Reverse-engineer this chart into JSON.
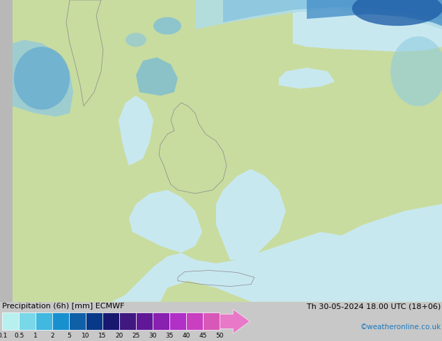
{
  "title_left": "Precipitation (6h) [mm] ECMWF",
  "title_right": "Th 30-05-2024 18.00 UTC (18+06)",
  "credit": "©weatheronline.co.uk",
  "colorbar_labels": [
    "0.1",
    "0.5",
    "1",
    "2",
    "5",
    "10",
    "15",
    "20",
    "25",
    "30",
    "35",
    "40",
    "45",
    "50"
  ],
  "colorbar_colors": [
    "#b8f0f0",
    "#78d8e8",
    "#40b8e0",
    "#1890d0",
    "#1060a8",
    "#083888",
    "#181870",
    "#401880",
    "#601898",
    "#8820b0",
    "#b030c8",
    "#c840c0",
    "#d858b8",
    "#e878c8"
  ],
  "land_color": "#c8dca0",
  "sea_color": "#c8e8f0",
  "fig_bg": "#c8c8c8",
  "precip_light_cyan": "#a0dce8",
  "precip_mid_blue": "#5090c0",
  "precip_dark_blue": "#2050a0",
  "figsize": [
    6.34,
    4.9
  ],
  "dpi": 100
}
